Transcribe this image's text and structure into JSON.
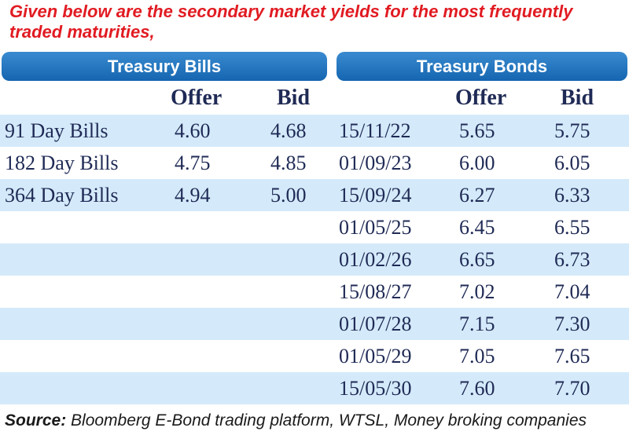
{
  "intro_text": "Given below are the secondary market yields for the most frequently traded maturities,",
  "bills": {
    "title": "Treasury Bills",
    "col_offer": "Offer",
    "col_bid": "Bid",
    "rows": [
      {
        "label": "91 Day Bills",
        "offer": "4.60",
        "bid": "4.68"
      },
      {
        "label": "182 Day Bills",
        "offer": "4.75",
        "bid": "4.85"
      },
      {
        "label": "364 Day Bills",
        "offer": "4.94",
        "bid": "5.00"
      }
    ]
  },
  "bonds": {
    "title": "Treasury Bonds",
    "col_offer": "Offer",
    "col_bid": "Bid",
    "rows": [
      {
        "maturity": "15/11/22",
        "offer": "5.65",
        "bid": "5.75"
      },
      {
        "maturity": "01/09/23",
        "offer": "6.00",
        "bid": "6.05"
      },
      {
        "maturity": "15/09/24",
        "offer": "6.27",
        "bid": "6.33"
      },
      {
        "maturity": "01/05/25",
        "offer": "6.45",
        "bid": "6.55"
      },
      {
        "maturity": "01/02/26",
        "offer": "6.65",
        "bid": "6.73"
      },
      {
        "maturity": "15/08/27",
        "offer": "7.02",
        "bid": "7.04"
      },
      {
        "maturity": "01/07/28",
        "offer": "7.15",
        "bid": "7.30"
      },
      {
        "maturity": "01/05/29",
        "offer": "7.05",
        "bid": "7.65"
      },
      {
        "maturity": "15/05/30",
        "offer": "7.60",
        "bid": "7.70"
      }
    ]
  },
  "source": {
    "label": "Source:",
    "text": " Bloomberg E-Bond trading platform, WTSL, Money broking companies"
  },
  "colors": {
    "intro": "#e11b22",
    "header": "#1565b0",
    "band": "#d4eafa",
    "text": "#1f2a55"
  }
}
